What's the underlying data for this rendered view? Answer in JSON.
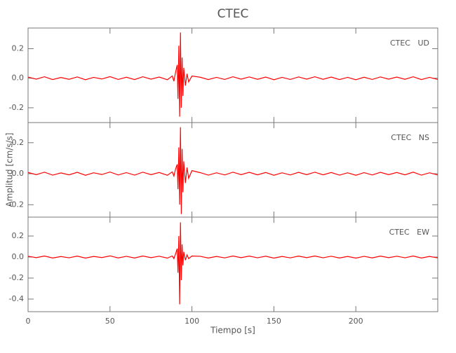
{
  "chart_data": [
    {
      "type": "line",
      "title": "CTEC",
      "annotation": "CTEC   UD",
      "color": "#ff0000",
      "xlim": [
        0,
        250
      ],
      "ylim": [
        -0.3,
        0.34
      ],
      "yticks": [
        -0.2,
        {
          "value": 0,
          "label": "0.0"
        },
        0.2
      ],
      "x": [
        0,
        5,
        10,
        15,
        20,
        25,
        30,
        35,
        40,
        45,
        50,
        55,
        60,
        65,
        70,
        75,
        80,
        85,
        88,
        89,
        90,
        91,
        91.5,
        92,
        92.5,
        93,
        93.5,
        94,
        94.5,
        95,
        96,
        97,
        98,
        100,
        105,
        110,
        115,
        120,
        125,
        130,
        135,
        140,
        145,
        150,
        155,
        160,
        165,
        170,
        175,
        180,
        185,
        190,
        195,
        200,
        205,
        210,
        215,
        220,
        225,
        230,
        235,
        240,
        245,
        250
      ],
      "values": [
        0.008,
        -0.006,
        0.01,
        -0.009,
        0.005,
        -0.007,
        0.009,
        -0.01,
        0.006,
        -0.005,
        0.011,
        -0.008,
        0.007,
        -0.009,
        0.01,
        -0.006,
        0.008,
        -0.01,
        0.015,
        -0.02,
        0.04,
        0.09,
        -0.14,
        0.22,
        -0.26,
        0.31,
        -0.2,
        0.14,
        -0.12,
        0.07,
        -0.05,
        0.03,
        -0.025,
        0.015,
        0.007,
        -0.009,
        0.006,
        -0.008,
        0.01,
        -0.006,
        0.009,
        -0.007,
        0.008,
        -0.01,
        0.006,
        -0.008,
        0.009,
        -0.006,
        0.01,
        -0.007,
        0.008,
        -0.009,
        0.006,
        -0.01,
        0.007,
        -0.008,
        0.009,
        -0.006,
        0.008,
        -0.007,
        0.01,
        -0.009,
        0.006,
        -0.008
      ]
    },
    {
      "type": "line",
      "ylabel": "Amplitud [cm/s/s]",
      "annotation": "CTEC   NS",
      "color": "#ff0000",
      "xlim": [
        0,
        250
      ],
      "ylim": [
        -0.28,
        0.33
      ],
      "yticks": [
        -0.2,
        {
          "value": 0,
          "label": "0.0"
        },
        0.2
      ],
      "x": [
        0,
        5,
        10,
        15,
        20,
        25,
        30,
        35,
        40,
        45,
        50,
        55,
        60,
        65,
        70,
        75,
        80,
        85,
        88,
        89,
        90,
        91,
        91.5,
        92,
        92.5,
        93,
        93.5,
        94,
        94.5,
        95,
        96,
        97,
        98,
        100,
        105,
        110,
        115,
        120,
        125,
        130,
        135,
        140,
        145,
        150,
        155,
        160,
        165,
        170,
        175,
        180,
        185,
        190,
        195,
        200,
        205,
        210,
        215,
        220,
        225,
        230,
        235,
        240,
        245,
        250
      ],
      "values": [
        0.008,
        -0.006,
        0.01,
        -0.009,
        0.005,
        -0.007,
        0.009,
        -0.01,
        0.006,
        -0.005,
        0.011,
        -0.008,
        0.007,
        -0.009,
        0.01,
        -0.006,
        0.008,
        -0.01,
        0.012,
        -0.015,
        0.03,
        0.06,
        -0.1,
        0.17,
        -0.2,
        0.3,
        -0.26,
        0.16,
        -0.12,
        0.08,
        -0.06,
        0.04,
        -0.03,
        0.02,
        0.007,
        -0.009,
        0.006,
        -0.008,
        0.01,
        -0.006,
        0.009,
        -0.007,
        0.008,
        -0.01,
        0.006,
        -0.008,
        0.009,
        -0.006,
        0.01,
        -0.007,
        0.008,
        -0.009,
        0.006,
        -0.01,
        0.007,
        -0.008,
        0.009,
        -0.006,
        0.008,
        -0.007,
        0.01,
        -0.009,
        0.006,
        -0.008
      ]
    },
    {
      "type": "line",
      "xlabel": "Tiempo [s]",
      "annotation": "CTEC   EW",
      "color": "#ff0000",
      "xlim": [
        0,
        250
      ],
      "ylim": [
        -0.52,
        0.38
      ],
      "xticks": [
        0,
        50,
        100,
        150,
        200
      ],
      "yticks": [
        -0.4,
        -0.2,
        {
          "value": 0,
          "label": "0.0"
        },
        0.2
      ],
      "x": [
        0,
        5,
        10,
        15,
        20,
        25,
        30,
        35,
        40,
        45,
        50,
        55,
        60,
        65,
        70,
        75,
        80,
        85,
        88,
        89,
        90,
        91,
        91.5,
        92,
        92.5,
        93,
        93.5,
        94,
        94.5,
        95,
        96,
        97,
        98,
        100,
        105,
        110,
        115,
        120,
        125,
        130,
        135,
        140,
        145,
        150,
        155,
        160,
        165,
        170,
        175,
        180,
        185,
        190,
        195,
        200,
        205,
        210,
        215,
        220,
        225,
        230,
        235,
        240,
        245,
        250
      ],
      "values": [
        0.008,
        -0.006,
        0.01,
        -0.009,
        0.005,
        -0.007,
        0.009,
        -0.01,
        0.006,
        -0.005,
        0.011,
        -0.008,
        0.007,
        -0.009,
        0.01,
        -0.006,
        0.008,
        -0.01,
        0.01,
        -0.015,
        0.03,
        0.08,
        -0.15,
        0.2,
        -0.45,
        0.33,
        -0.22,
        0.12,
        -0.08,
        0.05,
        -0.03,
        0.02,
        -0.015,
        0.01,
        0.007,
        -0.009,
        0.006,
        -0.008,
        0.01,
        -0.006,
        0.009,
        -0.007,
        0.008,
        -0.01,
        0.006,
        -0.008,
        0.009,
        -0.006,
        0.01,
        -0.007,
        0.008,
        -0.009,
        0.006,
        -0.01,
        0.007,
        -0.008,
        0.009,
        -0.006,
        0.008,
        -0.007,
        0.01,
        -0.009,
        0.006,
        -0.008
      ]
    }
  ]
}
